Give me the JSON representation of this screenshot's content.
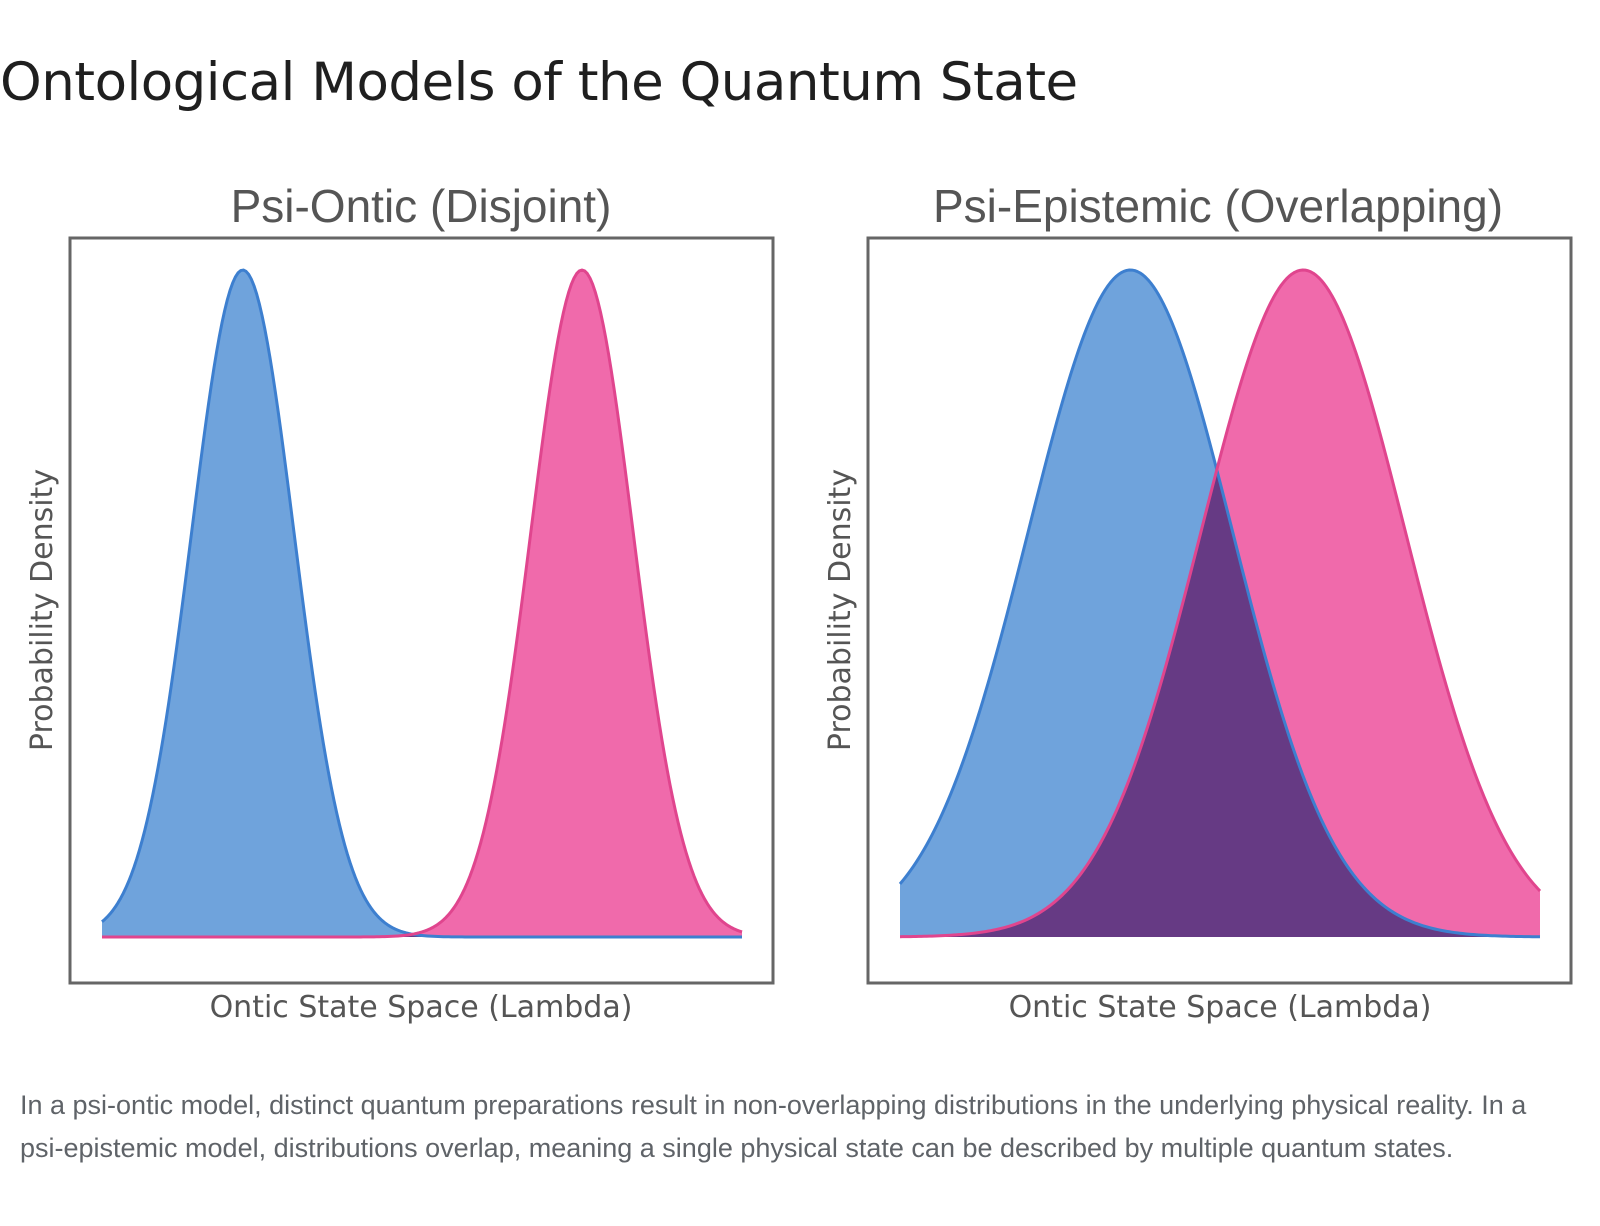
{
  "page": {
    "title": "Ontological Models of the Quantum State",
    "caption": "In a psi-ontic model, distinct quantum preparations result in non-overlapping distributions in the underlying physical reality. In a psi-epistemic model, distributions overlap, meaning a single physical state can be described by multiple quantum states."
  },
  "colors": {
    "blue_fill": "#6fa3dc",
    "blue_line": "#3d7fcf",
    "pink_fill": "#f06aab",
    "pink_line": "#e0458e",
    "overlap_fill": "#663a84",
    "frame": "#666666",
    "text": "#555555"
  },
  "chart_data": [
    {
      "type": "area",
      "title": "Psi-Ontic (Disjoint)",
      "xlabel": "Ontic State Space (Lambda)",
      "ylabel": "Probability Density",
      "xlim": [
        0,
        10
      ],
      "ylim": [
        0,
        1
      ],
      "grid": false,
      "series": [
        {
          "color": "blue",
          "mean": 2.2,
          "sd": 0.8,
          "peak": 1.0
        },
        {
          "color": "pink",
          "mean": 7.5,
          "sd": 0.8,
          "peak": 1.0
        }
      ]
    },
    {
      "type": "area",
      "title": "Psi-Epistemic (Overlapping)",
      "xlabel": "Ontic State Space (Lambda)",
      "ylabel": "Probability Density",
      "xlim": [
        0,
        10
      ],
      "ylim": [
        0,
        1
      ],
      "grid": false,
      "series": [
        {
          "color": "blue",
          "mean": 3.6,
          "sd": 1.6,
          "peak": 1.0
        },
        {
          "color": "pink",
          "mean": 6.3,
          "sd": 1.6,
          "peak": 1.0
        }
      ]
    }
  ]
}
